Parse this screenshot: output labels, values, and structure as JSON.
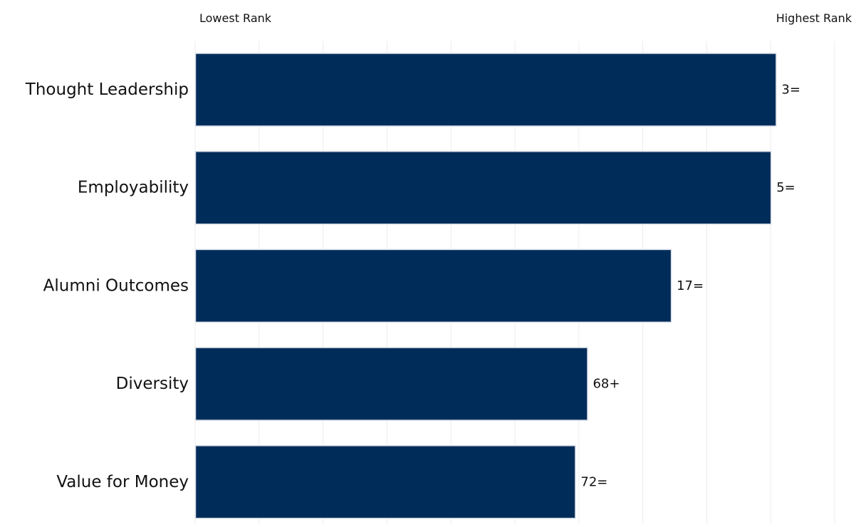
{
  "chart_data": {
    "type": "bar",
    "orientation": "horizontal",
    "title": "",
    "xlabel": "",
    "ylabel": "",
    "axis_end_labels": {
      "left": "Lowest Rank",
      "right": "Highest Rank"
    },
    "categories": [
      "Thought Leadership",
      "Employability",
      "Alumni Outcomes",
      "Diversity",
      "Value for Money"
    ],
    "values": [
      0.908,
      0.9,
      0.744,
      0.613,
      0.594
    ],
    "value_scale": "fraction of axis from lowest rank to highest rank",
    "data_labels": [
      "3=",
      "5=",
      "17=",
      "68+",
      "72="
    ],
    "xlim": [
      0,
      1
    ],
    "grid": true,
    "legend": "none",
    "colors": {
      "bar": "#002c5a",
      "bar_border": "#d6dde6",
      "grid": "#ececec",
      "text": "#111111"
    }
  }
}
